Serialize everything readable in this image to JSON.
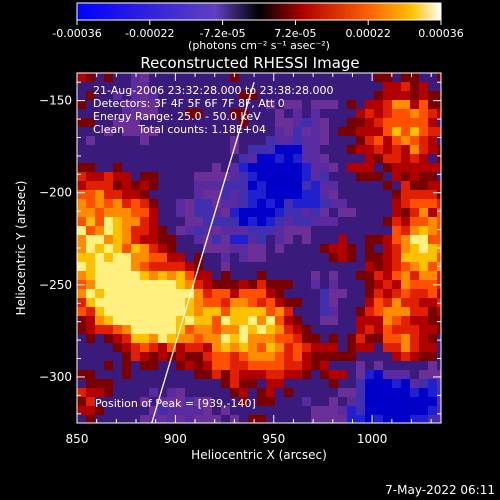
{
  "colorbar": {
    "ticks": [
      "-0.00036",
      "-0.00022",
      "-7.2e-05",
      "7.2e-05",
      "0.00022",
      "0.00036"
    ],
    "unit_label": "(photons cm⁻² s⁻¹ asec⁻²)"
  },
  "chart_data": {
    "type": "heatmap",
    "title": "Reconstructed RHESSI Image",
    "xlabel": "Heliocentric X (arcsec)",
    "ylabel": "Heliocentric Y (arcsec)",
    "xlim": [
      850,
      1035
    ],
    "ylim": [
      -325,
      -135
    ],
    "xticks": [
      850,
      900,
      950,
      1000
    ],
    "yticks": [
      -150,
      -200,
      -250,
      -300
    ],
    "annotations": [
      "21-Aug-2006 23:32:28.000 to 23:38:28.000",
      "Detectors: 3F 4F 5F 6F 7F 8F, Att 0",
      "Energy Range: 25.0 - 50.0 keV",
      "Clean    Total counts: 1.18E+04",
      "Position of Peak = [939,-140]"
    ],
    "limb_arc": [
      [
        888,
        -325
      ],
      [
        940,
        -140
      ]
    ],
    "colorbar_range": [
      -0.00036,
      0.00036
    ]
  },
  "footer": {
    "date": "7-May-2022 06:11"
  }
}
